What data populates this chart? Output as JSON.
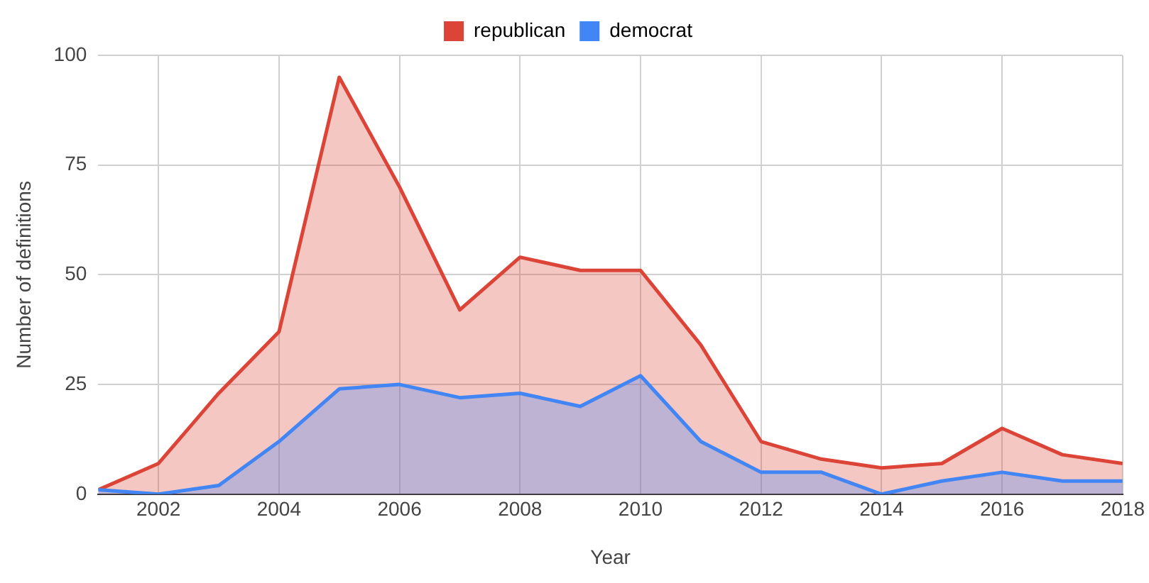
{
  "chart_data": {
    "type": "area",
    "xlabel": "Year",
    "ylabel": "Number of definitions",
    "x": [
      2001,
      2002,
      2003,
      2004,
      2005,
      2006,
      2007,
      2008,
      2009,
      2010,
      2011,
      2012,
      2013,
      2014,
      2015,
      2016,
      2017,
      2018
    ],
    "series": [
      {
        "name": "republican",
        "color": "#db4437",
        "values": [
          1,
          7,
          23,
          37,
          95,
          70,
          42,
          54,
          51,
          51,
          34,
          12,
          8,
          6,
          7,
          15,
          9,
          7
        ]
      },
      {
        "name": "democrat",
        "color": "#4285f4",
        "values": [
          1,
          0,
          2,
          12,
          24,
          25,
          22,
          23,
          20,
          27,
          12,
          5,
          5,
          0,
          3,
          5,
          3,
          3
        ]
      }
    ],
    "xlim": [
      2001,
      2018
    ],
    "xticks": [
      2002,
      2004,
      2006,
      2008,
      2010,
      2012,
      2014,
      2016,
      2018
    ],
    "ylim": [
      0,
      100
    ],
    "yticks": [
      0,
      25,
      50,
      75,
      100
    ],
    "grid": true,
    "legend": "top",
    "marker": "none",
    "line_style": "solid"
  }
}
